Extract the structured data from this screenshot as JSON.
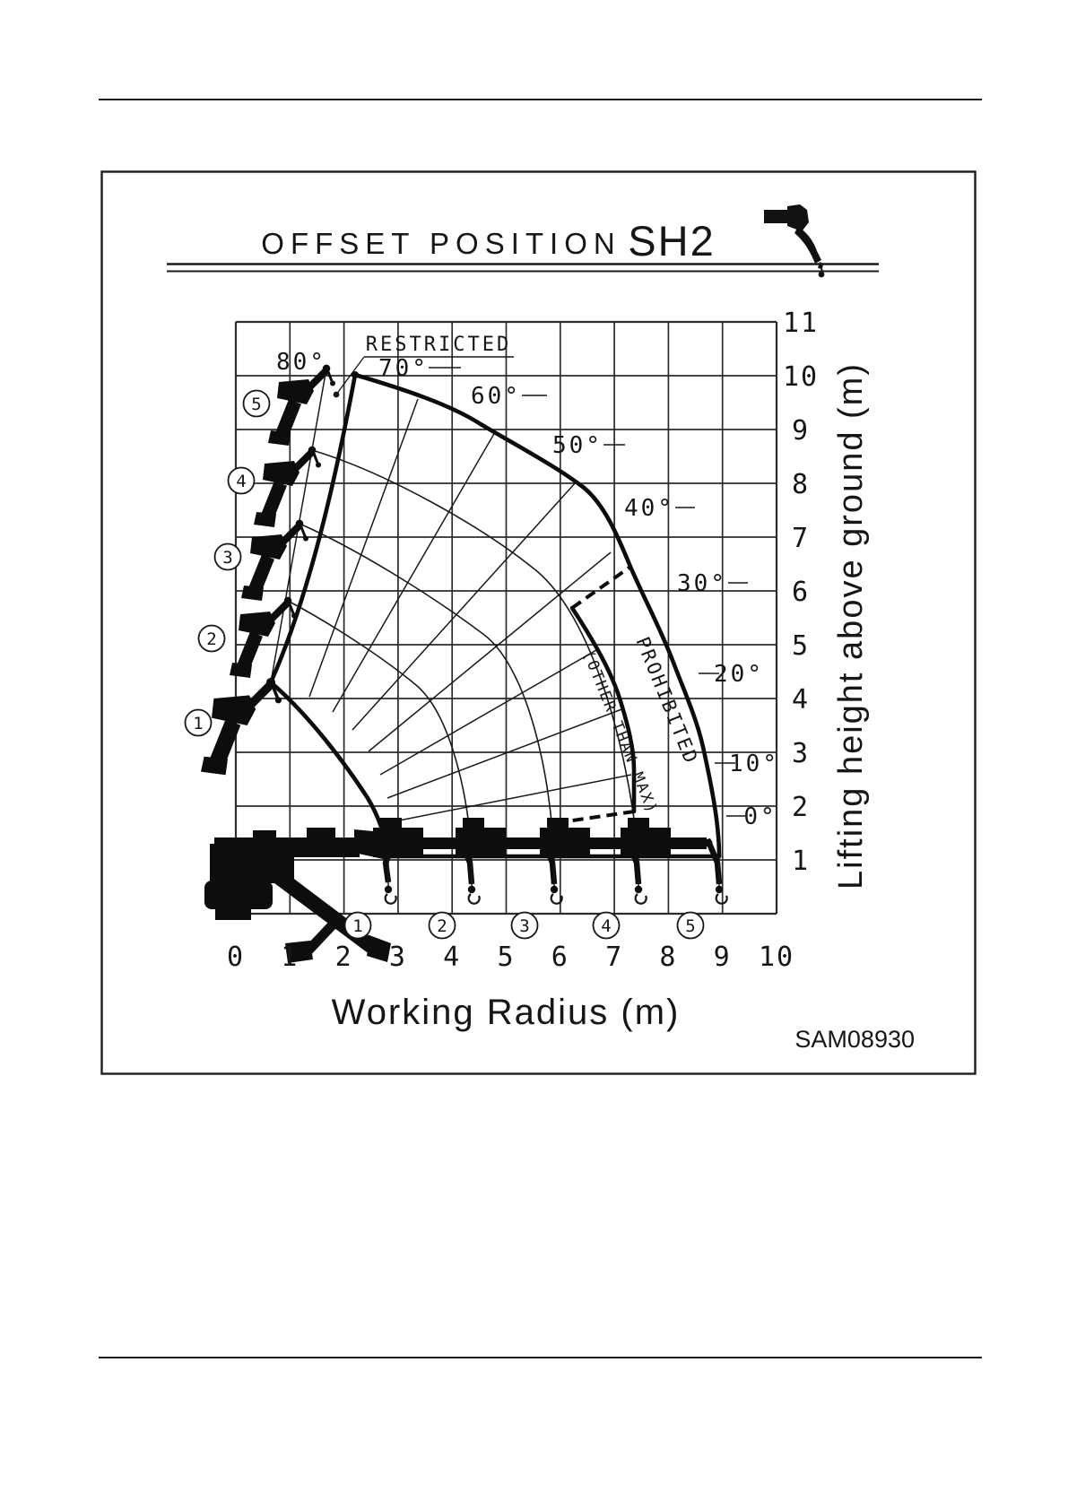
{
  "figure": {
    "title": "OFFSET POSITION",
    "model": "SH2",
    "code": "SAM08930"
  },
  "axes": {
    "x": {
      "label": "Working Radius  (m)",
      "ticks": [
        "0",
        "1",
        "2",
        "3",
        "4",
        "5",
        "6",
        "7",
        "8",
        "9",
        "10"
      ]
    },
    "y": {
      "label": "Lifting height above ground  (m)",
      "ticks": [
        "1",
        "2",
        "3",
        "4",
        "5",
        "6",
        "7",
        "8",
        "9",
        "10",
        "11"
      ]
    }
  },
  "annotations": {
    "restricted": "RESTRICTED",
    "prohibited_1": "PROHIBITED",
    "prohibited_2": "(OTHER THAN MAX)"
  },
  "angles": {
    "labels": [
      "80°",
      "70°",
      "60°",
      "50°",
      "40°",
      "30°",
      "20°",
      "10°",
      "0°"
    ]
  },
  "stages": {
    "labels": [
      "1",
      "2",
      "3",
      "4",
      "5"
    ]
  },
  "chart_data": {
    "type": "working-range-diagram",
    "title": "OFFSET POSITION SH2",
    "x_axis": {
      "label": "Working Radius (m)",
      "range": [
        0,
        10
      ],
      "grid_step_m": 1
    },
    "y_axis": {
      "label": "Lifting height above ground (m)",
      "range": [
        0,
        11
      ],
      "grid_step_m": 1
    },
    "boom_angle_lines_deg": [
      0,
      10,
      20,
      30,
      40,
      50,
      60,
      70,
      80
    ],
    "boom_pivot_m": {
      "x": 0.35,
      "y": 1.25
    },
    "min_hook_line_height_m": 1.05,
    "stages": [
      {
        "stage": "1",
        "max_radius_m": 2.8,
        "tip_height_at_80deg_m": 4.3
      },
      {
        "stage": "2",
        "max_radius_m": 4.35,
        "tip_height_at_80deg_m": 5.9
      },
      {
        "stage": "3",
        "max_radius_m": 5.9,
        "tip_height_at_80deg_m": 7.3
      },
      {
        "stage": "4",
        "max_radius_m": 7.4,
        "tip_height_at_80deg_m": 8.65
      },
      {
        "stage": "5",
        "max_radius_m": 8.95,
        "tip_height_at_80deg_m": 10.1
      }
    ],
    "max_envelope_points_m": [
      [
        2.2,
        10.0
      ],
      [
        4.5,
        9.1
      ],
      [
        6.4,
        7.9
      ],
      [
        7.3,
        6.5
      ],
      [
        8.1,
        4.7
      ],
      [
        8.6,
        3.1
      ],
      [
        8.95,
        1.05
      ]
    ],
    "prohibited_zone": {
      "label": "PROHIBITED (OTHER THAN MAX)",
      "inner_boundary_points_m": [
        [
          6.2,
          5.7
        ],
        [
          7.1,
          4.0
        ],
        [
          7.35,
          2.7
        ],
        [
          7.35,
          1.8
        ]
      ],
      "dashed_edges": true
    },
    "restricted_zone": {
      "label": "RESTRICTED",
      "between": "80 deg boom line and maximum offset boundary"
    }
  }
}
